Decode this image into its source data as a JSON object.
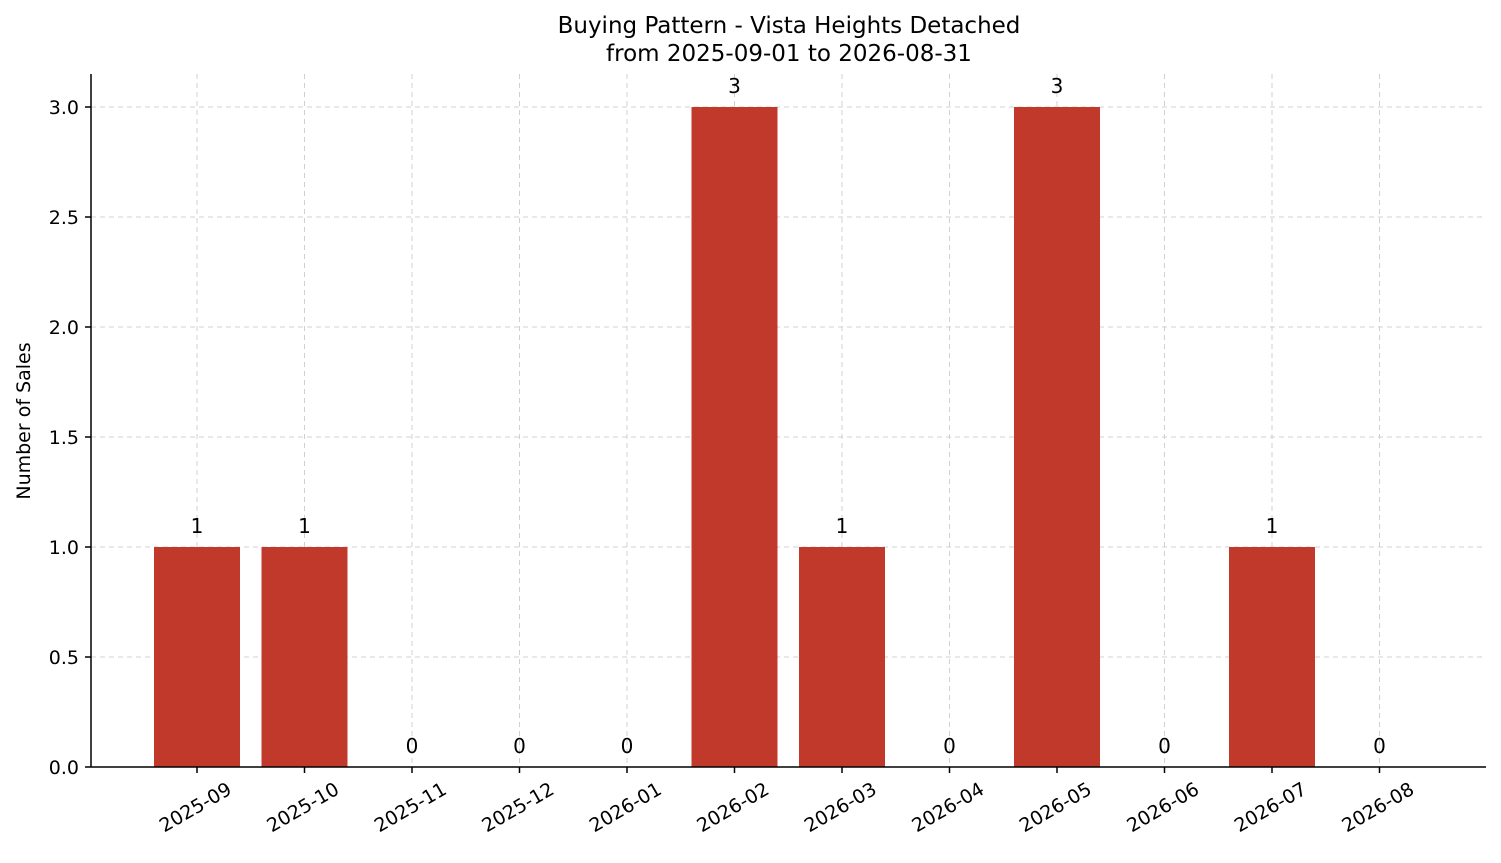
{
  "chart_data": {
    "type": "bar",
    "title": "Buying Pattern - Vista Heights Detached",
    "subtitle": "from 2025-09-01 to 2026-08-31",
    "xlabel": "",
    "ylabel": "Number of Sales",
    "categories": [
      "2025-09",
      "2025-10",
      "2025-11",
      "2025-12",
      "2026-01",
      "2026-02",
      "2026-03",
      "2026-04",
      "2026-05",
      "2026-06",
      "2026-07",
      "2026-08"
    ],
    "values": [
      1,
      1,
      0,
      0,
      0,
      3,
      1,
      0,
      3,
      0,
      1,
      0
    ],
    "data_labels": [
      "1",
      "1",
      "0",
      "0",
      "0",
      "3",
      "1",
      "0",
      "3",
      "0",
      "1",
      "0"
    ],
    "ylim": [
      0,
      3.15
    ],
    "yticks": [
      0.0,
      0.5,
      1.0,
      1.5,
      2.0,
      2.5,
      3.0
    ],
    "ytick_labels": [
      "0.0",
      "0.5",
      "1.0",
      "1.5",
      "2.0",
      "2.5",
      "3.0"
    ],
    "grid": true,
    "bar_color": "#c0392b"
  }
}
